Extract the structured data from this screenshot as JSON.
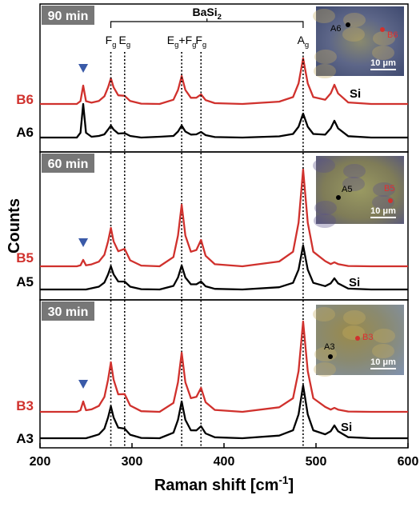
{
  "chart_data": [
    {
      "type": "line",
      "title": "90 min",
      "xlim": [
        200,
        600
      ],
      "ylim": [
        0,
        185
      ],
      "x": [
        200,
        220,
        240,
        244,
        247,
        250,
        256,
        264,
        270,
        274,
        277,
        280,
        285,
        292,
        298,
        310,
        330,
        345,
        350,
        354,
        358,
        364,
        370,
        375,
        380,
        390,
        420,
        460,
        475,
        481,
        486,
        491,
        497,
        510,
        516,
        520,
        524,
        535,
        560,
        600
      ],
      "series": [
        {
          "name": "B6",
          "color": "#d0312d",
          "values": [
            60,
            60,
            60,
            63.5,
            83,
            63.5,
            61.6,
            63.8,
            69.6,
            80.8,
            92,
            80.8,
            70.8,
            70.2,
            63.7,
            60.4,
            60,
            65.3,
            77.5,
            95,
            77.5,
            67.7,
            67.8,
            72,
            64.8,
            61,
            60,
            62.9,
            68.6,
            85.7,
            117,
            85.7,
            68.6,
            65.3,
            73.2,
            84,
            73.2,
            61.9,
            60,
            60
          ]
        },
        {
          "name": "A6",
          "color": "#000000",
          "values": [
            18,
            18,
            18,
            24,
            60,
            24,
            19,
            20,
            22,
            28,
            33,
            28,
            23,
            23.5,
            20,
            18,
            19,
            20,
            25.5,
            33,
            25.5,
            21.7,
            22,
            25,
            21,
            18.6,
            18,
            19.5,
            22.5,
            31.5,
            48,
            31.5,
            22.5,
            21.6,
            29.5,
            39,
            29.5,
            19.7,
            18,
            18
          ]
        }
      ],
      "markers": [
        247
      ],
      "si_label": "Si",
      "annotation": [
        "BaSi",
        "2"
      ],
      "peaks": [
        {
          "label": [
            "F",
            "g"
          ],
          "x": 277
        },
        {
          "label": [
            "E",
            "g"
          ],
          "x": 292
        },
        {
          "label": [
            "E",
            "g",
            "+F",
            "g"
          ],
          "x": 354
        },
        {
          "label": [
            "F",
            "g"
          ],
          "x": 375
        },
        {
          "label": [
            "A",
            "g"
          ],
          "x": 486
        }
      ],
      "inset": {
        "points": [
          "A6",
          "B6"
        ],
        "scale": "10 μm"
      }
    },
    {
      "type": "line",
      "title": "60 min",
      "xlim": [
        200,
        600
      ],
      "ylim": [
        0,
        185
      ],
      "ylabel": "Counts",
      "x": [
        200,
        220,
        240,
        244,
        247,
        250,
        256,
        264,
        270,
        274,
        277,
        280,
        285,
        292,
        298,
        310,
        330,
        345,
        350,
        354,
        358,
        364,
        370,
        375,
        380,
        390,
        420,
        460,
        475,
        481,
        486,
        491,
        497,
        510,
        516,
        520,
        524,
        535,
        560,
        600
      ],
      "series": [
        {
          "name": "B5",
          "color": "#d0312d",
          "values": [
            42,
            42,
            42,
            43.2,
            50,
            43.2,
            44.4,
            47.8,
            56.4,
            73.2,
            90,
            73.2,
            60.8,
            63.8,
            49.5,
            42.9,
            42,
            53.6,
            80.5,
            119,
            80.5,
            60.2,
            62.4,
            75,
            55.2,
            44.6,
            42,
            48,
            60.2,
            96.5,
            163,
            96.5,
            60.2,
            48.5,
            44.8,
            47,
            44.8,
            42.4,
            42,
            42
          ]
        },
        {
          "name": "A5",
          "color": "#000000",
          "values": [
            13,
            13,
            13,
            13,
            13,
            13,
            14.5,
            16.5,
            21.7,
            31.9,
            42,
            31.9,
            23,
            22.9,
            16.5,
            13.4,
            13,
            17.5,
            28,
            43,
            28,
            19.5,
            19.5,
            23,
            17,
            13.8,
            13,
            15.8,
            21.3,
            37.8,
            68,
            37.8,
            21.3,
            17.2,
            20.7,
            27,
            20.7,
            14.1,
            13,
            13
          ]
        }
      ],
      "markers": [
        247
      ],
      "si_label": "Si",
      "inset": {
        "points": [
          "A5",
          "B5"
        ],
        "scale": "10 μm"
      }
    },
    {
      "type": "line",
      "title": "30 min",
      "xlim": [
        200,
        600
      ],
      "ylim": [
        0,
        185
      ],
      "xlabel": [
        "Raman shift [cm",
        "-1",
        "]"
      ],
      "xticks": [
        200,
        300,
        400,
        500,
        600
      ],
      "x": [
        200,
        220,
        240,
        244,
        247,
        250,
        256,
        264,
        270,
        274,
        277,
        280,
        285,
        292,
        298,
        310,
        330,
        345,
        350,
        354,
        358,
        364,
        370,
        375,
        380,
        390,
        420,
        460,
        475,
        481,
        486,
        491,
        497,
        510,
        516,
        520,
        524,
        535,
        560,
        600
      ],
      "series": [
        {
          "name": "B3",
          "color": "#d0312d",
          "values": [
            45,
            45,
            45,
            47,
            58,
            47,
            48.1,
            52.4,
            63.6,
            85.3,
            107,
            85.3,
            66.9,
            67.2,
            52.9,
            45.8,
            45,
            56.1,
            82,
            119,
            82,
            62.1,
            63.7,
            75,
            57,
            47.4,
            45,
            50.7,
            62,
            95.9,
            158,
            95.9,
            62,
            51.2,
            47.8,
            50,
            47.8,
            45.4,
            45,
            45
          ]
        },
        {
          "name": "A3",
          "color": "#000000",
          "values": [
            12,
            12,
            12,
            12,
            12,
            12,
            14,
            16.8,
            24,
            38,
            52,
            38,
            25.2,
            24,
            16.4,
            12.4,
            12,
            18.9,
            35,
            58,
            35,
            21.9,
            21.8,
            27,
            18,
            13.2,
            12,
            15.3,
            21.9,
            41.7,
            78,
            41.7,
            21.9,
            16.9,
            20.8,
            28,
            20.8,
            13.3,
            12,
            12
          ]
        }
      ],
      "markers": [
        247
      ],
      "si_label": "Si",
      "inset": {
        "points": [
          "A3",
          "B3"
        ],
        "scale": "10 μm"
      }
    }
  ]
}
